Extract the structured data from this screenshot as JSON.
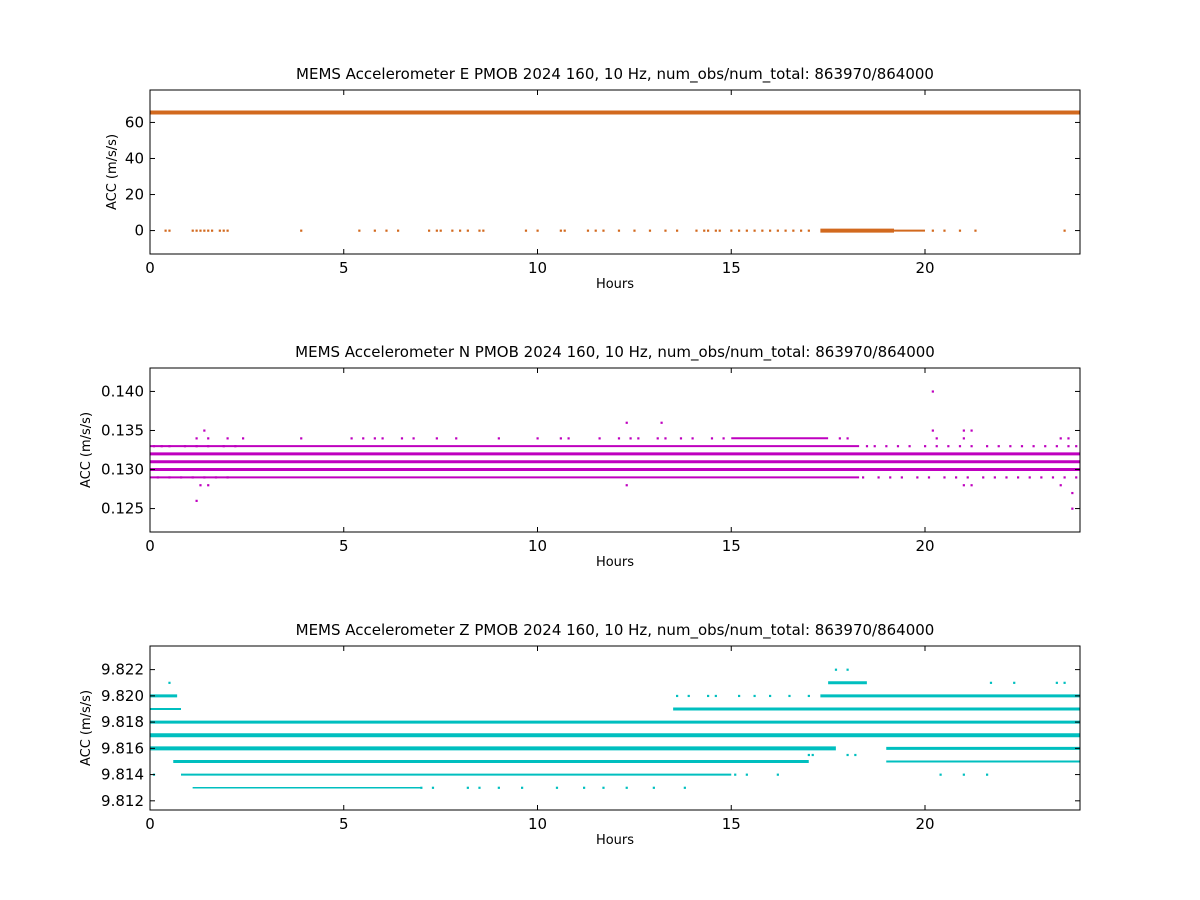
{
  "chart_data": [
    {
      "type": "scatter",
      "title": "MEMS Accelerometer E PMOB 2024 160, 10 Hz, num_obs/num_total: 863970/864000",
      "xlabel": "Hours",
      "ylabel": "ACC (m/s/s)",
      "xlim": [
        0,
        24
      ],
      "ylim": [
        -13,
        78
      ],
      "xticks": [
        0,
        5,
        10,
        15,
        20
      ],
      "yticks": [
        0,
        20,
        40,
        60
      ],
      "ytick_labels": [
        "0",
        "20",
        "40",
        "60"
      ],
      "grid": false,
      "color": "#d2691e",
      "series": [
        {
          "bands": [
            {
              "y": 65.5,
              "from": 0,
              "to": 24,
              "weight": 4
            }
          ]
        },
        {
          "bands": [
            {
              "y": 0,
              "from": 17.3,
              "to": 19.2,
              "weight": 4
            },
            {
              "y": 0,
              "from": 19.2,
              "to": 20.0,
              "weight": 2
            }
          ]
        },
        {
          "points": [
            [
              0.4,
              0
            ],
            [
              0.5,
              0
            ],
            [
              1.1,
              0
            ],
            [
              1.2,
              0
            ],
            [
              1.3,
              0
            ],
            [
              1.4,
              0
            ],
            [
              1.5,
              0
            ],
            [
              1.6,
              0
            ],
            [
              1.8,
              0
            ],
            [
              1.9,
              0
            ],
            [
              2.0,
              0
            ],
            [
              3.9,
              0
            ],
            [
              5.4,
              0
            ],
            [
              5.8,
              0
            ],
            [
              6.1,
              0
            ],
            [
              6.4,
              0
            ],
            [
              7.2,
              0
            ],
            [
              7.4,
              0
            ],
            [
              7.5,
              0
            ],
            [
              7.8,
              0
            ],
            [
              8.0,
              0
            ],
            [
              8.2,
              0
            ],
            [
              8.5,
              0
            ],
            [
              8.6,
              0
            ],
            [
              9.7,
              0
            ],
            [
              10.0,
              0
            ],
            [
              10.6,
              0
            ],
            [
              10.7,
              0
            ],
            [
              11.3,
              0
            ],
            [
              11.5,
              0
            ],
            [
              11.7,
              0
            ],
            [
              12.1,
              0
            ],
            [
              12.5,
              0
            ],
            [
              12.9,
              0
            ],
            [
              13.3,
              0
            ],
            [
              13.6,
              0
            ],
            [
              14.1,
              0
            ],
            [
              14.3,
              0
            ],
            [
              14.4,
              0
            ],
            [
              14.6,
              0
            ],
            [
              14.7,
              0
            ],
            [
              15.0,
              0
            ],
            [
              15.2,
              0
            ],
            [
              15.4,
              0
            ],
            [
              15.6,
              0
            ],
            [
              15.8,
              0
            ],
            [
              16.0,
              0
            ],
            [
              16.2,
              0
            ],
            [
              16.4,
              0
            ],
            [
              16.6,
              0
            ],
            [
              16.8,
              0
            ],
            [
              17.0,
              0
            ],
            [
              20.2,
              0
            ],
            [
              20.5,
              0
            ],
            [
              20.9,
              0
            ],
            [
              21.3,
              0
            ],
            [
              23.6,
              0
            ]
          ]
        }
      ]
    },
    {
      "type": "scatter",
      "title": "MEMS Accelerometer N PMOB 2024 160, 10 Hz, num_obs/num_total: 863970/864000",
      "xlabel": "Hours",
      "ylabel": "ACC (m/s/s)",
      "xlim": [
        0,
        24
      ],
      "ylim": [
        0.122,
        0.143
      ],
      "xticks": [
        0,
        5,
        10,
        15,
        20
      ],
      "yticks": [
        0.125,
        0.13,
        0.135,
        0.14
      ],
      "ytick_labels": [
        "0.125",
        "0.130",
        "0.135",
        "0.140"
      ],
      "grid": false,
      "color": "#bf00bf",
      "series": [
        {
          "bands": [
            {
              "y": 0.13,
              "from": 0,
              "to": 24,
              "weight": 3
            },
            {
              "y": 0.131,
              "from": 0,
              "to": 24,
              "weight": 3
            },
            {
              "y": 0.132,
              "from": 0,
              "to": 24,
              "weight": 3
            },
            {
              "y": 0.133,
              "from": 0,
              "to": 18.3,
              "weight": 2
            },
            {
              "y": 0.129,
              "from": 0,
              "to": 18.3,
              "weight": 2
            },
            {
              "y": 0.134,
              "from": 15.0,
              "to": 17.5,
              "weight": 2
            }
          ]
        },
        {
          "points": [
            [
              0.1,
              0.133
            ],
            [
              0.3,
              0.133
            ],
            [
              0.5,
              0.133
            ],
            [
              0.9,
              0.133
            ],
            [
              1.2,
              0.133
            ],
            [
              1.5,
              0.133
            ],
            [
              1.9,
              0.133
            ],
            [
              2.2,
              0.133
            ],
            [
              18.5,
              0.133
            ],
            [
              18.7,
              0.133
            ],
            [
              19.0,
              0.133
            ],
            [
              19.3,
              0.133
            ],
            [
              19.6,
              0.133
            ],
            [
              20.0,
              0.133
            ],
            [
              20.3,
              0.133
            ],
            [
              20.6,
              0.133
            ],
            [
              20.9,
              0.133
            ],
            [
              21.2,
              0.133
            ],
            [
              21.6,
              0.133
            ],
            [
              21.9,
              0.133
            ],
            [
              22.2,
              0.133
            ],
            [
              22.5,
              0.133
            ],
            [
              22.8,
              0.133
            ],
            [
              23.1,
              0.133
            ],
            [
              23.4,
              0.133
            ],
            [
              23.7,
              0.133
            ],
            [
              23.9,
              0.133
            ],
            [
              0.2,
              0.129
            ],
            [
              0.5,
              0.129
            ],
            [
              0.8,
              0.129
            ],
            [
              1.1,
              0.129
            ],
            [
              1.4,
              0.129
            ],
            [
              1.7,
              0.129
            ],
            [
              2.0,
              0.129
            ],
            [
              18.4,
              0.129
            ],
            [
              18.8,
              0.129
            ],
            [
              19.1,
              0.129
            ],
            [
              19.4,
              0.129
            ],
            [
              19.8,
              0.129
            ],
            [
              20.1,
              0.129
            ],
            [
              20.5,
              0.129
            ],
            [
              20.8,
              0.129
            ],
            [
              21.1,
              0.129
            ],
            [
              21.5,
              0.129
            ],
            [
              21.8,
              0.129
            ],
            [
              22.1,
              0.129
            ],
            [
              22.4,
              0.129
            ],
            [
              22.7,
              0.129
            ],
            [
              23.0,
              0.129
            ],
            [
              23.3,
              0.129
            ],
            [
              23.6,
              0.129
            ],
            [
              23.9,
              0.129
            ],
            [
              1.2,
              0.134
            ],
            [
              1.5,
              0.134
            ],
            [
              2.0,
              0.134
            ],
            [
              2.4,
              0.134
            ],
            [
              3.9,
              0.134
            ],
            [
              5.2,
              0.134
            ],
            [
              5.5,
              0.134
            ],
            [
              5.8,
              0.134
            ],
            [
              6.0,
              0.134
            ],
            [
              6.5,
              0.134
            ],
            [
              6.8,
              0.134
            ],
            [
              7.4,
              0.134
            ],
            [
              7.9,
              0.134
            ],
            [
              9.0,
              0.134
            ],
            [
              10.0,
              0.134
            ],
            [
              10.6,
              0.134
            ],
            [
              10.8,
              0.134
            ],
            [
              11.6,
              0.134
            ],
            [
              12.1,
              0.134
            ],
            [
              12.4,
              0.134
            ],
            [
              12.6,
              0.134
            ],
            [
              13.1,
              0.134
            ],
            [
              13.3,
              0.134
            ],
            [
              13.7,
              0.134
            ],
            [
              14.0,
              0.134
            ],
            [
              14.5,
              0.134
            ],
            [
              14.8,
              0.134
            ],
            [
              17.8,
              0.134
            ],
            [
              18.0,
              0.134
            ],
            [
              20.3,
              0.134
            ],
            [
              21.0,
              0.134
            ],
            [
              23.5,
              0.134
            ],
            [
              23.7,
              0.134
            ],
            [
              1.4,
              0.135
            ],
            [
              20.2,
              0.135
            ],
            [
              21.0,
              0.135
            ],
            [
              21.2,
              0.135
            ],
            [
              12.3,
              0.136
            ],
            [
              13.2,
              0.136
            ],
            [
              20.2,
              0.14
            ],
            [
              1.2,
              0.126
            ],
            [
              1.3,
              0.128
            ],
            [
              1.5,
              0.128
            ],
            [
              12.3,
              0.128
            ],
            [
              21.0,
              0.128
            ],
            [
              21.2,
              0.128
            ],
            [
              23.5,
              0.128
            ],
            [
              23.8,
              0.127
            ],
            [
              23.8,
              0.125
            ]
          ]
        }
      ]
    },
    {
      "type": "scatter",
      "title": "MEMS Accelerometer Z PMOB 2024 160, 10 Hz, num_obs/num_total: 863970/864000",
      "xlabel": "Hours",
      "ylabel": "ACC (m/s/s)",
      "xlim": [
        0,
        24
      ],
      "ylim": [
        9.8113,
        9.8238
      ],
      "xticks": [
        0,
        5,
        10,
        15,
        20
      ],
      "yticks": [
        9.812,
        9.814,
        9.816,
        9.818,
        9.82,
        9.822
      ],
      "ytick_labels": [
        "9.812",
        "9.814",
        "9.816",
        "9.818",
        "9.820",
        "9.822"
      ],
      "grid": false,
      "color": "#00bfbf",
      "series": [
        {
          "bands": [
            {
              "y": 9.817,
              "from": 0,
              "to": 24,
              "weight": 4
            },
            {
              "y": 9.818,
              "from": 0,
              "to": 24,
              "weight": 3
            },
            {
              "y": 9.816,
              "from": 0,
              "to": 17.7,
              "weight": 4
            },
            {
              "y": 9.816,
              "from": 19.0,
              "to": 24,
              "weight": 3
            },
            {
              "y": 9.815,
              "from": 0.6,
              "to": 17.0,
              "weight": 3
            },
            {
              "y": 9.815,
              "from": 19.0,
              "to": 24,
              "weight": 2
            },
            {
              "y": 9.814,
              "from": 0.8,
              "to": 15.0,
              "weight": 2
            },
            {
              "y": 9.813,
              "from": 1.1,
              "to": 7.0,
              "weight": 1.5
            },
            {
              "y": 9.819,
              "from": 13.5,
              "to": 24,
              "weight": 3
            },
            {
              "y": 9.82,
              "from": 17.3,
              "to": 24,
              "weight": 3
            },
            {
              "y": 9.82,
              "from": 0.0,
              "to": 0.7,
              "weight": 3
            },
            {
              "y": 9.819,
              "from": 0.0,
              "to": 0.8,
              "weight": 2
            },
            {
              "y": 9.821,
              "from": 17.5,
              "to": 18.5,
              "weight": 3
            }
          ]
        },
        {
          "points": [
            [
              0.5,
              9.821
            ],
            [
              17.7,
              9.822
            ],
            [
              18.0,
              9.822
            ],
            [
              13.6,
              9.82
            ],
            [
              13.9,
              9.82
            ],
            [
              14.4,
              9.82
            ],
            [
              14.6,
              9.82
            ],
            [
              15.2,
              9.82
            ],
            [
              15.6,
              9.82
            ],
            [
              16.0,
              9.82
            ],
            [
              16.5,
              9.82
            ],
            [
              17.0,
              9.82
            ],
            [
              7.0,
              9.813
            ],
            [
              7.3,
              9.813
            ],
            [
              8.2,
              9.813
            ],
            [
              8.5,
              9.813
            ],
            [
              9.0,
              9.813
            ],
            [
              9.6,
              9.813
            ],
            [
              10.5,
              9.813
            ],
            [
              11.2,
              9.813
            ],
            [
              11.7,
              9.813
            ],
            [
              12.3,
              9.813
            ],
            [
              13.0,
              9.813
            ],
            [
              13.8,
              9.813
            ],
            [
              15.1,
              9.814
            ],
            [
              15.4,
              9.814
            ],
            [
              16.2,
              9.814
            ],
            [
              20.4,
              9.814
            ],
            [
              21.0,
              9.814
            ],
            [
              21.6,
              9.814
            ],
            [
              0.1,
              9.814
            ],
            [
              17.0,
              9.8155
            ],
            [
              17.1,
              9.8155
            ],
            [
              18.0,
              9.8155
            ],
            [
              18.2,
              9.8155
            ],
            [
              21.7,
              9.821
            ],
            [
              22.3,
              9.821
            ],
            [
              23.4,
              9.821
            ],
            [
              23.6,
              9.821
            ],
            [
              5.6,
              9.818
            ],
            [
              5.9,
              9.818
            ],
            [
              6.4,
              9.818
            ],
            [
              6.8,
              9.818
            ],
            [
              7.3,
              9.818
            ]
          ]
        }
      ]
    }
  ]
}
